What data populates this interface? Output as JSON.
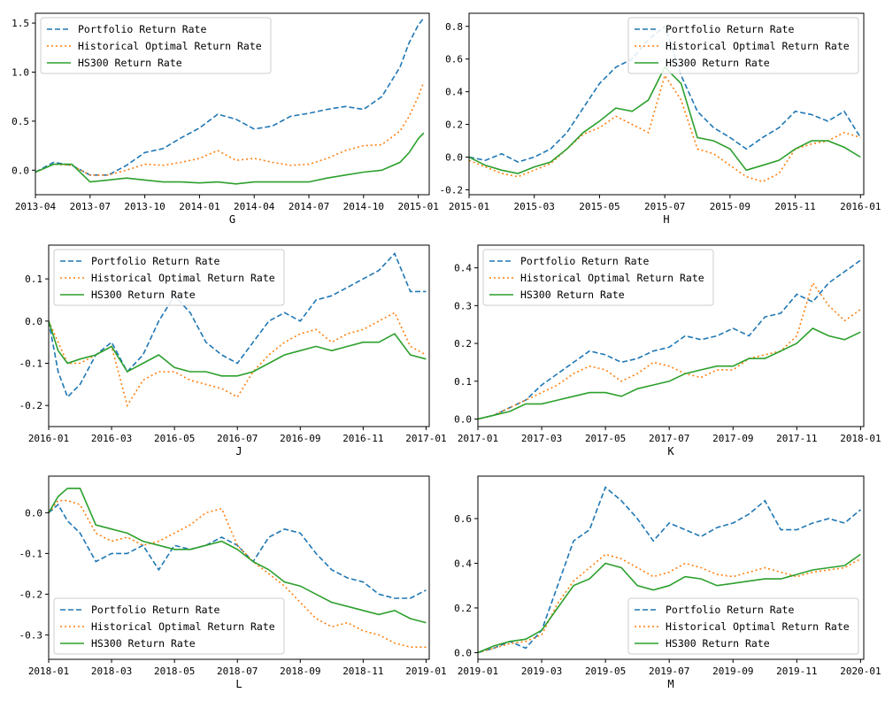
{
  "legend_labels": [
    "Portfolio Return Rate",
    "Historical Optimal Return Rate",
    "HS300 Return Rate"
  ],
  "series_colors": [
    "#1f77b4",
    "#ff7f0e",
    "#2ca02c"
  ],
  "chart_data": [
    {
      "type": "line",
      "xlabel": "G",
      "legend": "top-left",
      "x_ticks": [
        "2013-04",
        "2013-07",
        "2013-10",
        "2014-01",
        "2014-04",
        "2014-07",
        "2014-10",
        "2015-01"
      ],
      "x_domain": [
        0,
        21.6
      ],
      "y_ticks": [
        0.0,
        0.5,
        1.0,
        1.5
      ],
      "ylim": [
        -0.25,
        1.6
      ],
      "x": [
        0,
        1,
        2,
        3,
        4,
        5,
        6,
        7,
        8,
        9,
        10,
        11,
        12,
        13,
        14,
        15,
        16,
        17,
        18,
        19,
        20,
        20.5,
        21,
        21.3
      ],
      "series": [
        {
          "name": "Portfolio Return Rate",
          "values": [
            -0.02,
            0.08,
            0.05,
            -0.05,
            -0.05,
            0.05,
            0.18,
            0.22,
            0.33,
            0.43,
            0.57,
            0.52,
            0.42,
            0.45,
            0.55,
            0.58,
            0.62,
            0.65,
            0.62,
            0.75,
            1.05,
            1.3,
            1.48,
            1.55
          ]
        },
        {
          "name": "Historical Optimal Return Rate",
          "values": [
            -0.02,
            0.06,
            0.05,
            -0.05,
            -0.05,
            0.0,
            0.06,
            0.05,
            0.08,
            0.12,
            0.2,
            0.1,
            0.12,
            0.08,
            0.05,
            0.06,
            0.12,
            0.2,
            0.25,
            0.26,
            0.4,
            0.55,
            0.75,
            0.9
          ]
        },
        {
          "name": "HS300 Return Rate",
          "values": [
            -0.02,
            0.06,
            0.06,
            -0.12,
            -0.1,
            -0.08,
            -0.1,
            -0.12,
            -0.12,
            -0.13,
            -0.12,
            -0.14,
            -0.12,
            -0.12,
            -0.12,
            -0.12,
            -0.08,
            -0.05,
            -0.02,
            0.0,
            0.08,
            0.18,
            0.32,
            0.38
          ]
        }
      ]
    },
    {
      "type": "line",
      "xlabel": "H",
      "legend": "top-right",
      "x_ticks": [
        "2015-01",
        "2015-03",
        "2015-05",
        "2015-07",
        "2015-09",
        "2015-11",
        "2016-01"
      ],
      "x_domain": [
        0,
        12.1
      ],
      "y_ticks": [
        -0.2,
        0.0,
        0.2,
        0.4,
        0.6,
        0.8
      ],
      "ylim": [
        -0.23,
        0.88
      ],
      "x": [
        0,
        0.5,
        1,
        1.5,
        2,
        2.5,
        3,
        3.5,
        4,
        4.5,
        5,
        5.5,
        6,
        6.5,
        7,
        7.5,
        8,
        8.5,
        9,
        9.5,
        10,
        10.5,
        11,
        11.5,
        12
      ],
      "series": [
        {
          "name": "Portfolio Return Rate",
          "values": [
            0.0,
            -0.02,
            0.02,
            -0.03,
            0.0,
            0.05,
            0.15,
            0.3,
            0.45,
            0.55,
            0.6,
            0.72,
            0.8,
            0.5,
            0.28,
            0.18,
            0.12,
            0.05,
            0.12,
            0.18,
            0.28,
            0.26,
            0.22,
            0.28,
            0.12
          ]
        },
        {
          "name": "Historical Optimal Return Rate",
          "values": [
            -0.02,
            -0.06,
            -0.1,
            -0.12,
            -0.08,
            -0.04,
            0.05,
            0.14,
            0.18,
            0.25,
            0.2,
            0.15,
            0.5,
            0.35,
            0.05,
            0.02,
            -0.05,
            -0.12,
            -0.15,
            -0.1,
            0.05,
            0.08,
            0.1,
            0.15,
            0.12
          ]
        },
        {
          "name": "HS300 Return Rate",
          "values": [
            0.0,
            -0.05,
            -0.08,
            -0.1,
            -0.06,
            -0.03,
            0.05,
            0.15,
            0.22,
            0.3,
            0.28,
            0.35,
            0.55,
            0.45,
            0.12,
            0.1,
            0.05,
            -0.08,
            -0.05,
            -0.02,
            0.05,
            0.1,
            0.1,
            0.06,
            0.0
          ]
        }
      ]
    },
    {
      "type": "line",
      "xlabel": "J",
      "legend": "top-left",
      "x_ticks": [
        "2016-01",
        "2016-03",
        "2016-05",
        "2016-07",
        "2016-09",
        "2016-11",
        "2017-01"
      ],
      "x_domain": [
        0,
        12.1
      ],
      "y_ticks": [
        -0.2,
        -0.1,
        0.0,
        0.1
      ],
      "ylim": [
        -0.25,
        0.18
      ],
      "x": [
        0,
        0.3,
        0.6,
        1,
        1.5,
        2,
        2.5,
        3,
        3.5,
        4,
        4.5,
        5,
        5.5,
        6,
        6.5,
        7,
        7.5,
        8,
        8.5,
        9,
        9.5,
        10,
        10.5,
        11,
        11.5,
        12
      ],
      "series": [
        {
          "name": "Portfolio Return Rate",
          "values": [
            0.0,
            -0.12,
            -0.18,
            -0.15,
            -0.08,
            -0.05,
            -0.12,
            -0.08,
            0.0,
            0.06,
            0.02,
            -0.05,
            -0.08,
            -0.1,
            -0.05,
            0.0,
            0.02,
            0.0,
            0.05,
            0.06,
            0.08,
            0.1,
            0.12,
            0.16,
            0.07,
            0.07
          ]
        },
        {
          "name": "Historical Optimal Return Rate",
          "values": [
            0.0,
            -0.05,
            -0.1,
            -0.1,
            -0.08,
            -0.06,
            -0.2,
            -0.14,
            -0.12,
            -0.12,
            -0.14,
            -0.15,
            -0.16,
            -0.18,
            -0.12,
            -0.08,
            -0.05,
            -0.03,
            -0.02,
            -0.05,
            -0.03,
            -0.02,
            0.0,
            0.02,
            -0.06,
            -0.08
          ]
        },
        {
          "name": "HS300 Return Rate",
          "values": [
            0.0,
            -0.07,
            -0.1,
            -0.09,
            -0.08,
            -0.06,
            -0.12,
            -0.1,
            -0.08,
            -0.11,
            -0.12,
            -0.12,
            -0.13,
            -0.13,
            -0.12,
            -0.1,
            -0.08,
            -0.07,
            -0.06,
            -0.07,
            -0.06,
            -0.05,
            -0.05,
            -0.03,
            -0.08,
            -0.09
          ]
        }
      ]
    },
    {
      "type": "line",
      "xlabel": "K",
      "legend": "top-left",
      "x_ticks": [
        "2017-01",
        "2017-03",
        "2017-05",
        "2017-07",
        "2017-09",
        "2017-11",
        "2018-01"
      ],
      "x_domain": [
        0,
        12.1
      ],
      "y_ticks": [
        0.0,
        0.1,
        0.2,
        0.3,
        0.4
      ],
      "ylim": [
        -0.02,
        0.46
      ],
      "x": [
        0,
        0.5,
        1,
        1.5,
        2,
        2.5,
        3,
        3.5,
        4,
        4.5,
        5,
        5.5,
        6,
        6.5,
        7,
        7.5,
        8,
        8.5,
        9,
        9.5,
        10,
        10.5,
        11,
        11.5,
        12
      ],
      "series": [
        {
          "name": "Portfolio Return Rate",
          "values": [
            0.0,
            0.01,
            0.03,
            0.05,
            0.09,
            0.12,
            0.15,
            0.18,
            0.17,
            0.15,
            0.16,
            0.18,
            0.19,
            0.22,
            0.21,
            0.22,
            0.24,
            0.22,
            0.27,
            0.28,
            0.33,
            0.31,
            0.36,
            0.39,
            0.42
          ]
        },
        {
          "name": "Historical Optimal Return Rate",
          "values": [
            0.0,
            0.01,
            0.03,
            0.05,
            0.07,
            0.09,
            0.12,
            0.14,
            0.13,
            0.1,
            0.12,
            0.15,
            0.14,
            0.12,
            0.11,
            0.13,
            0.13,
            0.16,
            0.17,
            0.18,
            0.22,
            0.36,
            0.3,
            0.26,
            0.29
          ]
        },
        {
          "name": "HS300 Return Rate",
          "values": [
            0.0,
            0.01,
            0.02,
            0.04,
            0.04,
            0.05,
            0.06,
            0.07,
            0.07,
            0.06,
            0.08,
            0.09,
            0.1,
            0.12,
            0.13,
            0.14,
            0.14,
            0.16,
            0.16,
            0.18,
            0.2,
            0.24,
            0.22,
            0.21,
            0.23
          ]
        }
      ]
    },
    {
      "type": "line",
      "xlabel": "L",
      "legend": "bottom-left",
      "x_ticks": [
        "2018-01",
        "2018-03",
        "2018-05",
        "2018-07",
        "2018-09",
        "2018-11",
        "2019-01"
      ],
      "x_domain": [
        0,
        12.1
      ],
      "y_ticks": [
        0.0,
        -0.1,
        -0.2,
        -0.3
      ],
      "ylim": [
        -0.36,
        0.09
      ],
      "x": [
        0,
        0.3,
        0.6,
        1,
        1.5,
        2,
        2.5,
        3,
        3.5,
        4,
        4.5,
        5,
        5.5,
        6,
        6.5,
        7,
        7.5,
        8,
        8.5,
        9,
        9.5,
        10,
        10.5,
        11,
        11.5,
        12
      ],
      "series": [
        {
          "name": "Portfolio Return Rate",
          "values": [
            0.0,
            0.02,
            -0.02,
            -0.05,
            -0.12,
            -0.1,
            -0.1,
            -0.08,
            -0.14,
            -0.08,
            -0.09,
            -0.08,
            -0.06,
            -0.08,
            -0.12,
            -0.06,
            -0.04,
            -0.05,
            -0.1,
            -0.14,
            -0.16,
            -0.17,
            -0.2,
            -0.21,
            -0.21,
            -0.19
          ]
        },
        {
          "name": "Historical Optimal Return Rate",
          "values": [
            0.0,
            0.03,
            0.03,
            0.02,
            -0.05,
            -0.07,
            -0.06,
            -0.08,
            -0.07,
            -0.05,
            -0.03,
            0.0,
            0.01,
            -0.08,
            -0.12,
            -0.15,
            -0.18,
            -0.22,
            -0.26,
            -0.28,
            -0.27,
            -0.29,
            -0.3,
            -0.32,
            -0.33,
            -0.33
          ]
        },
        {
          "name": "HS300 Return Rate",
          "values": [
            0.0,
            0.04,
            0.06,
            0.06,
            -0.03,
            -0.04,
            -0.05,
            -0.07,
            -0.08,
            -0.09,
            -0.09,
            -0.08,
            -0.07,
            -0.09,
            -0.12,
            -0.14,
            -0.17,
            -0.18,
            -0.2,
            -0.22,
            -0.23,
            -0.24,
            -0.25,
            -0.24,
            -0.26,
            -0.27
          ]
        }
      ]
    },
    {
      "type": "line",
      "xlabel": "M",
      "legend": "bottom-right",
      "x_ticks": [
        "2019-01",
        "2019-03",
        "2019-05",
        "2019-07",
        "2019-09",
        "2019-11",
        "2020-01"
      ],
      "x_domain": [
        0,
        12.1
      ],
      "y_ticks": [
        0.0,
        0.2,
        0.4,
        0.6
      ],
      "ylim": [
        -0.03,
        0.79
      ],
      "x": [
        0,
        0.5,
        1,
        1.5,
        2,
        2.5,
        3,
        3.5,
        4,
        4.5,
        5,
        5.5,
        6,
        6.5,
        7,
        7.5,
        8,
        8.5,
        9,
        9.5,
        10,
        10.5,
        11,
        11.5,
        12
      ],
      "series": [
        {
          "name": "Portfolio Return Rate",
          "values": [
            0.0,
            0.02,
            0.05,
            0.02,
            0.1,
            0.3,
            0.5,
            0.55,
            0.74,
            0.68,
            0.6,
            0.5,
            0.58,
            0.55,
            0.52,
            0.56,
            0.58,
            0.62,
            0.68,
            0.55,
            0.55,
            0.58,
            0.6,
            0.58,
            0.64
          ]
        },
        {
          "name": "Historical Optimal Return Rate",
          "values": [
            0.0,
            0.02,
            0.04,
            0.05,
            0.08,
            0.22,
            0.32,
            0.38,
            0.44,
            0.42,
            0.38,
            0.34,
            0.36,
            0.4,
            0.38,
            0.35,
            0.34,
            0.36,
            0.38,
            0.36,
            0.34,
            0.36,
            0.37,
            0.38,
            0.42
          ]
        },
        {
          "name": "HS300 Return Rate",
          "values": [
            0.0,
            0.03,
            0.05,
            0.06,
            0.1,
            0.2,
            0.3,
            0.33,
            0.4,
            0.38,
            0.3,
            0.28,
            0.3,
            0.34,
            0.33,
            0.3,
            0.31,
            0.32,
            0.33,
            0.33,
            0.35,
            0.37,
            0.38,
            0.39,
            0.44
          ]
        }
      ]
    }
  ]
}
